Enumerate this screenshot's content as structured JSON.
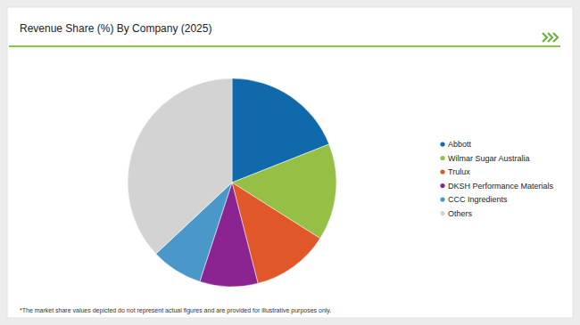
{
  "chart_data": {
    "type": "pie",
    "title": "Revenue Share (%) By Company (2025)",
    "categories": [
      "Abbott",
      "Wilmar Sugar Australia",
      "Trulux",
      "DKSH Performance Materials",
      "CCC Ingredients",
      "Others"
    ],
    "values": [
      19,
      15,
      12,
      9,
      8,
      37
    ],
    "colors": [
      "#1069ab",
      "#95bf45",
      "#e0582a",
      "#8b2390",
      "#4a98c9",
      "#d3d3d3"
    ],
    "legend": "right",
    "annotations": [
      "*The market share values depicted do not represent actual figures and are provided for illustrative purposes only."
    ]
  }
}
